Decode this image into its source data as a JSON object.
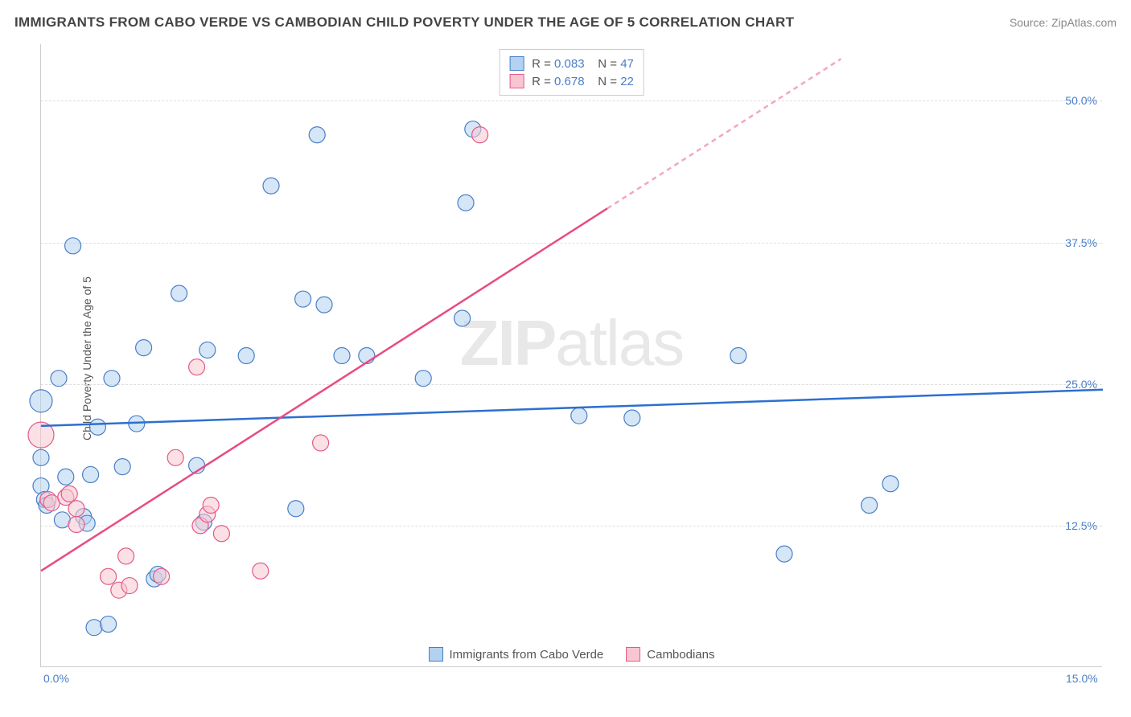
{
  "title": "IMMIGRANTS FROM CABO VERDE VS CAMBODIAN CHILD POVERTY UNDER THE AGE OF 5 CORRELATION CHART",
  "source": "Source: ZipAtlas.com",
  "ylabel": "Child Poverty Under the Age of 5",
  "watermark": {
    "bold": "ZIP",
    "light": "atlas"
  },
  "chart": {
    "type": "scatter-with-regression",
    "background_color": "#ffffff",
    "grid_color": "#dddddd",
    "axis_color": "#cccccc",
    "xlim": [
      0,
      15
    ],
    "ylim": [
      0,
      55
    ],
    "xticks": [
      {
        "value": 0,
        "label": "0.0%"
      },
      {
        "value": 15,
        "label": "15.0%"
      }
    ],
    "yticks": [
      {
        "value": 12.5,
        "label": "12.5%"
      },
      {
        "value": 25.0,
        "label": "25.0%"
      },
      {
        "value": 37.5,
        "label": "37.5%"
      },
      {
        "value": 50.0,
        "label": "50.0%"
      }
    ],
    "tick_color": "#4a7ec7",
    "tick_fontsize": 14,
    "label_fontsize": 14,
    "legend_top": [
      {
        "color_key": "blue",
        "r_label": "R =",
        "r_value": "0.083",
        "n_label": "N =",
        "n_value": "47"
      },
      {
        "color_key": "pink",
        "r_label": "R =",
        "r_value": "0.678",
        "n_label": "N =",
        "n_value": "22"
      }
    ],
    "legend_bottom": [
      {
        "color_key": "blue",
        "label": "Immigrants from Cabo Verde"
      },
      {
        "color_key": "pink",
        "label": "Cambodians"
      }
    ],
    "series": [
      {
        "name": "Immigrants from Cabo Verde",
        "fill_color": "#b3d1f0",
        "stroke_color": "#4a7ec7",
        "fill_opacity": 0.55,
        "stroke_width": 1.2,
        "marker_radius": 10,
        "regression": {
          "solid": {
            "x1": 0,
            "y1": 21.3,
            "x2": 15,
            "y2": 24.5
          },
          "color": "#2d6fd0",
          "width": 2.5
        },
        "points": [
          {
            "x": 0.0,
            "y": 23.5,
            "r": 14
          },
          {
            "x": 0.0,
            "y": 18.5,
            "r": 10
          },
          {
            "x": 0.0,
            "y": 16.0,
            "r": 10
          },
          {
            "x": 0.05,
            "y": 14.8,
            "r": 10
          },
          {
            "x": 0.08,
            "y": 14.3,
            "r": 10
          },
          {
            "x": 0.25,
            "y": 25.5,
            "r": 10
          },
          {
            "x": 0.3,
            "y": 13.0,
            "r": 10
          },
          {
            "x": 0.35,
            "y": 16.8,
            "r": 10
          },
          {
            "x": 0.45,
            "y": 37.2,
            "r": 10
          },
          {
            "x": 0.6,
            "y": 13.3,
            "r": 10
          },
          {
            "x": 0.65,
            "y": 12.7,
            "r": 10
          },
          {
            "x": 0.7,
            "y": 17.0,
            "r": 10
          },
          {
            "x": 0.75,
            "y": 3.5,
            "r": 10
          },
          {
            "x": 0.8,
            "y": 21.2,
            "r": 10
          },
          {
            "x": 0.95,
            "y": 3.8,
            "r": 10
          },
          {
            "x": 1.0,
            "y": 25.5,
            "r": 10
          },
          {
            "x": 1.15,
            "y": 17.7,
            "r": 10
          },
          {
            "x": 1.35,
            "y": 21.5,
            "r": 10
          },
          {
            "x": 1.45,
            "y": 28.2,
            "r": 10
          },
          {
            "x": 1.6,
            "y": 7.8,
            "r": 10
          },
          {
            "x": 1.65,
            "y": 8.2,
            "r": 10
          },
          {
            "x": 1.95,
            "y": 33.0,
            "r": 10
          },
          {
            "x": 2.2,
            "y": 17.8,
            "r": 10
          },
          {
            "x": 2.3,
            "y": 12.8,
            "r": 10
          },
          {
            "x": 2.35,
            "y": 28.0,
            "r": 10
          },
          {
            "x": 2.9,
            "y": 27.5,
            "r": 10
          },
          {
            "x": 3.25,
            "y": 42.5,
            "r": 10
          },
          {
            "x": 3.6,
            "y": 14.0,
            "r": 10
          },
          {
            "x": 3.7,
            "y": 32.5,
            "r": 10
          },
          {
            "x": 3.9,
            "y": 47.0,
            "r": 10
          },
          {
            "x": 4.0,
            "y": 32.0,
            "r": 10
          },
          {
            "x": 4.25,
            "y": 27.5,
            "r": 10
          },
          {
            "x": 4.6,
            "y": 27.5,
            "r": 10
          },
          {
            "x": 5.4,
            "y": 25.5,
            "r": 10
          },
          {
            "x": 5.95,
            "y": 30.8,
            "r": 10
          },
          {
            "x": 6.0,
            "y": 41.0,
            "r": 10
          },
          {
            "x": 6.1,
            "y": 47.5,
            "r": 10
          },
          {
            "x": 7.6,
            "y": 22.2,
            "r": 10
          },
          {
            "x": 8.35,
            "y": 22.0,
            "r": 10
          },
          {
            "x": 9.85,
            "y": 27.5,
            "r": 10
          },
          {
            "x": 10.5,
            "y": 10.0,
            "r": 10
          },
          {
            "x": 11.7,
            "y": 14.3,
            "r": 10
          },
          {
            "x": 12.0,
            "y": 16.2,
            "r": 10
          }
        ]
      },
      {
        "name": "Cambodians",
        "fill_color": "#f8c6d2",
        "stroke_color": "#e55a87",
        "fill_opacity": 0.55,
        "stroke_width": 1.2,
        "marker_radius": 10,
        "regression": {
          "solid": {
            "x1": 0,
            "y1": 8.5,
            "x2": 8.0,
            "y2": 40.5
          },
          "dashed": {
            "x1": 8.0,
            "y1": 40.5,
            "x2": 11.3,
            "y2": 53.7
          },
          "color": "#e94b83",
          "width": 2.5,
          "dash": "6,5"
        },
        "points": [
          {
            "x": 0.0,
            "y": 20.5,
            "r": 16
          },
          {
            "x": 0.1,
            "y": 14.8,
            "r": 10
          },
          {
            "x": 0.15,
            "y": 14.5,
            "r": 10
          },
          {
            "x": 0.35,
            "y": 15.0,
            "r": 10
          },
          {
            "x": 0.4,
            "y": 15.3,
            "r": 10
          },
          {
            "x": 0.5,
            "y": 12.6,
            "r": 10
          },
          {
            "x": 0.5,
            "y": 14.0,
            "r": 10
          },
          {
            "x": 0.95,
            "y": 8.0,
            "r": 10
          },
          {
            "x": 1.1,
            "y": 6.8,
            "r": 10
          },
          {
            "x": 1.2,
            "y": 9.8,
            "r": 10
          },
          {
            "x": 1.25,
            "y": 7.2,
            "r": 10
          },
          {
            "x": 1.7,
            "y": 8.0,
            "r": 10
          },
          {
            "x": 1.9,
            "y": 18.5,
            "r": 10
          },
          {
            "x": 2.2,
            "y": 26.5,
            "r": 10
          },
          {
            "x": 2.25,
            "y": 12.5,
            "r": 10
          },
          {
            "x": 2.35,
            "y": 13.5,
            "r": 10
          },
          {
            "x": 2.4,
            "y": 14.3,
            "r": 10
          },
          {
            "x": 2.55,
            "y": 11.8,
            "r": 10
          },
          {
            "x": 3.1,
            "y": 8.5,
            "r": 10
          },
          {
            "x": 3.95,
            "y": 19.8,
            "r": 10
          },
          {
            "x": 6.2,
            "y": 47.0,
            "r": 10
          }
        ]
      }
    ]
  }
}
